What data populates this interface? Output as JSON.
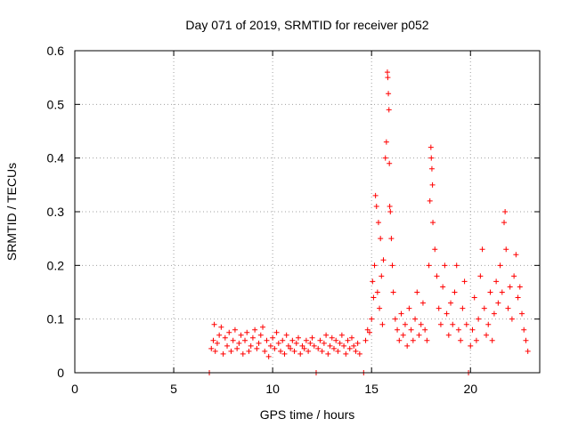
{
  "chart_data": {
    "type": "scatter",
    "title": "Day 071 of 2019, SRMTID for receiver p052",
    "xlabel": "GPS time / hours",
    "ylabel": "SRMTID / TECUs",
    "xlim": [
      0,
      23.5
    ],
    "ylim": [
      0,
      0.6
    ],
    "xticks": [
      0,
      5,
      10,
      15,
      20
    ],
    "yticks": [
      0,
      0.1,
      0.2,
      0.3,
      0.4,
      0.5,
      0.6
    ],
    "ytick_labels": [
      "0",
      "0.1",
      "0.2",
      "0.3",
      "0.4",
      "0.5",
      "0.6"
    ],
    "grid": true,
    "marker": "+",
    "series": [
      {
        "name": "SRMTID",
        "color": "#ff0000",
        "points": [
          [
            6.8,
            0.0
          ],
          [
            6.9,
            0.045
          ],
          [
            7.0,
            0.06
          ],
          [
            7.05,
            0.09
          ],
          [
            7.1,
            0.04
          ],
          [
            7.2,
            0.055
          ],
          [
            7.3,
            0.07
          ],
          [
            7.4,
            0.085
          ],
          [
            7.5,
            0.035
          ],
          [
            7.6,
            0.065
          ],
          [
            7.7,
            0.05
          ],
          [
            7.8,
            0.075
          ],
          [
            7.9,
            0.04
          ],
          [
            8.0,
            0.06
          ],
          [
            8.1,
            0.08
          ],
          [
            8.2,
            0.045
          ],
          [
            8.3,
            0.055
          ],
          [
            8.4,
            0.07
          ],
          [
            8.5,
            0.035
          ],
          [
            8.6,
            0.06
          ],
          [
            8.7,
            0.075
          ],
          [
            8.8,
            0.04
          ],
          [
            8.9,
            0.05
          ],
          [
            9.0,
            0.065
          ],
          [
            9.1,
            0.08
          ],
          [
            9.2,
            0.045
          ],
          [
            9.3,
            0.055
          ],
          [
            9.4,
            0.07
          ],
          [
            9.5,
            0.085
          ],
          [
            9.6,
            0.04
          ],
          [
            9.7,
            0.06
          ],
          [
            9.8,
            0.03
          ],
          [
            9.9,
            0.05
          ],
          [
            10.0,
            0.065
          ],
          [
            10.1,
            0.045
          ],
          [
            10.2,
            0.075
          ],
          [
            10.3,
            0.055
          ],
          [
            10.4,
            0.04
          ],
          [
            10.5,
            0.06
          ],
          [
            10.6,
            0.035
          ],
          [
            10.7,
            0.07
          ],
          [
            10.8,
            0.05
          ],
          [
            10.9,
            0.045
          ],
          [
            11.0,
            0.06
          ],
          [
            11.1,
            0.04
          ],
          [
            11.2,
            0.055
          ],
          [
            11.3,
            0.065
          ],
          [
            11.4,
            0.035
          ],
          [
            11.5,
            0.05
          ],
          [
            11.6,
            0.045
          ],
          [
            11.7,
            0.06
          ],
          [
            11.8,
            0.04
          ],
          [
            11.9,
            0.055
          ],
          [
            12.0,
            0.065
          ],
          [
            12.1,
            0.05
          ],
          [
            12.2,
            0.0
          ],
          [
            12.3,
            0.045
          ],
          [
            12.4,
            0.06
          ],
          [
            12.5,
            0.04
          ],
          [
            12.6,
            0.055
          ],
          [
            12.7,
            0.07
          ],
          [
            12.8,
            0.035
          ],
          [
            12.9,
            0.05
          ],
          [
            13.0,
            0.065
          ],
          [
            13.1,
            0.045
          ],
          [
            13.2,
            0.06
          ],
          [
            13.3,
            0.04
          ],
          [
            13.4,
            0.055
          ],
          [
            13.5,
            0.07
          ],
          [
            13.6,
            0.05
          ],
          [
            13.7,
            0.035
          ],
          [
            13.8,
            0.06
          ],
          [
            13.9,
            0.045
          ],
          [
            14.0,
            0.065
          ],
          [
            14.1,
            0.05
          ],
          [
            14.2,
            0.04
          ],
          [
            14.3,
            0.055
          ],
          [
            14.4,
            0.035
          ],
          [
            14.6,
            0.0
          ],
          [
            14.7,
            0.06
          ],
          [
            14.8,
            0.08
          ],
          [
            14.9,
            0.075
          ],
          [
            15.0,
            0.1
          ],
          [
            15.05,
            0.17
          ],
          [
            15.1,
            0.14
          ],
          [
            15.15,
            0.2
          ],
          [
            15.2,
            0.33
          ],
          [
            15.25,
            0.31
          ],
          [
            15.3,
            0.15
          ],
          [
            15.35,
            0.28
          ],
          [
            15.4,
            0.12
          ],
          [
            15.45,
            0.25
          ],
          [
            15.5,
            0.18
          ],
          [
            15.55,
            0.09
          ],
          [
            15.6,
            0.21
          ],
          [
            15.7,
            0.4
          ],
          [
            15.75,
            0.43
          ],
          [
            15.8,
            0.56
          ],
          [
            15.82,
            0.55
          ],
          [
            15.85,
            0.52
          ],
          [
            15.88,
            0.49
          ],
          [
            15.9,
            0.39
          ],
          [
            15.92,
            0.31
          ],
          [
            15.95,
            0.3
          ],
          [
            16.0,
            0.25
          ],
          [
            16.05,
            0.2
          ],
          [
            16.1,
            0.15
          ],
          [
            16.2,
            0.1
          ],
          [
            16.3,
            0.08
          ],
          [
            16.4,
            0.06
          ],
          [
            16.5,
            0.11
          ],
          [
            16.6,
            0.07
          ],
          [
            16.7,
            0.09
          ],
          [
            16.8,
            0.05
          ],
          [
            16.9,
            0.12
          ],
          [
            17.0,
            0.08
          ],
          [
            17.1,
            0.06
          ],
          [
            17.2,
            0.1
          ],
          [
            17.3,
            0.15
          ],
          [
            17.4,
            0.07
          ],
          [
            17.5,
            0.09
          ],
          [
            17.6,
            0.13
          ],
          [
            17.7,
            0.08
          ],
          [
            17.8,
            0.06
          ],
          [
            17.9,
            0.2
          ],
          [
            17.95,
            0.32
          ],
          [
            18.0,
            0.42
          ],
          [
            18.02,
            0.4
          ],
          [
            18.05,
            0.38
          ],
          [
            18.08,
            0.35
          ],
          [
            18.1,
            0.28
          ],
          [
            18.2,
            0.23
          ],
          [
            18.3,
            0.18
          ],
          [
            18.4,
            0.12
          ],
          [
            18.5,
            0.09
          ],
          [
            18.6,
            0.16
          ],
          [
            18.7,
            0.2
          ],
          [
            18.8,
            0.11
          ],
          [
            18.9,
            0.07
          ],
          [
            19.0,
            0.13
          ],
          [
            19.1,
            0.09
          ],
          [
            19.2,
            0.15
          ],
          [
            19.3,
            0.2
          ],
          [
            19.4,
            0.08
          ],
          [
            19.5,
            0.06
          ],
          [
            19.6,
            0.12
          ],
          [
            19.7,
            0.17
          ],
          [
            19.8,
            0.09
          ],
          [
            19.9,
            0.0
          ],
          [
            20.0,
            0.05
          ],
          [
            20.1,
            0.08
          ],
          [
            20.2,
            0.14
          ],
          [
            20.3,
            0.06
          ],
          [
            20.4,
            0.1
          ],
          [
            20.5,
            0.18
          ],
          [
            20.6,
            0.23
          ],
          [
            20.7,
            0.12
          ],
          [
            20.8,
            0.07
          ],
          [
            20.9,
            0.09
          ],
          [
            21.0,
            0.15
          ],
          [
            21.1,
            0.06
          ],
          [
            21.2,
            0.11
          ],
          [
            21.3,
            0.17
          ],
          [
            21.4,
            0.13
          ],
          [
            21.5,
            0.2
          ],
          [
            21.6,
            0.15
          ],
          [
            21.7,
            0.28
          ],
          [
            21.75,
            0.3
          ],
          [
            21.8,
            0.23
          ],
          [
            21.9,
            0.12
          ],
          [
            22.0,
            0.16
          ],
          [
            22.1,
            0.1
          ],
          [
            22.2,
            0.18
          ],
          [
            22.3,
            0.22
          ],
          [
            22.4,
            0.14
          ],
          [
            22.5,
            0.16
          ],
          [
            22.6,
            0.11
          ],
          [
            22.7,
            0.08
          ],
          [
            22.8,
            0.06
          ],
          [
            22.9,
            0.04
          ]
        ]
      }
    ]
  }
}
